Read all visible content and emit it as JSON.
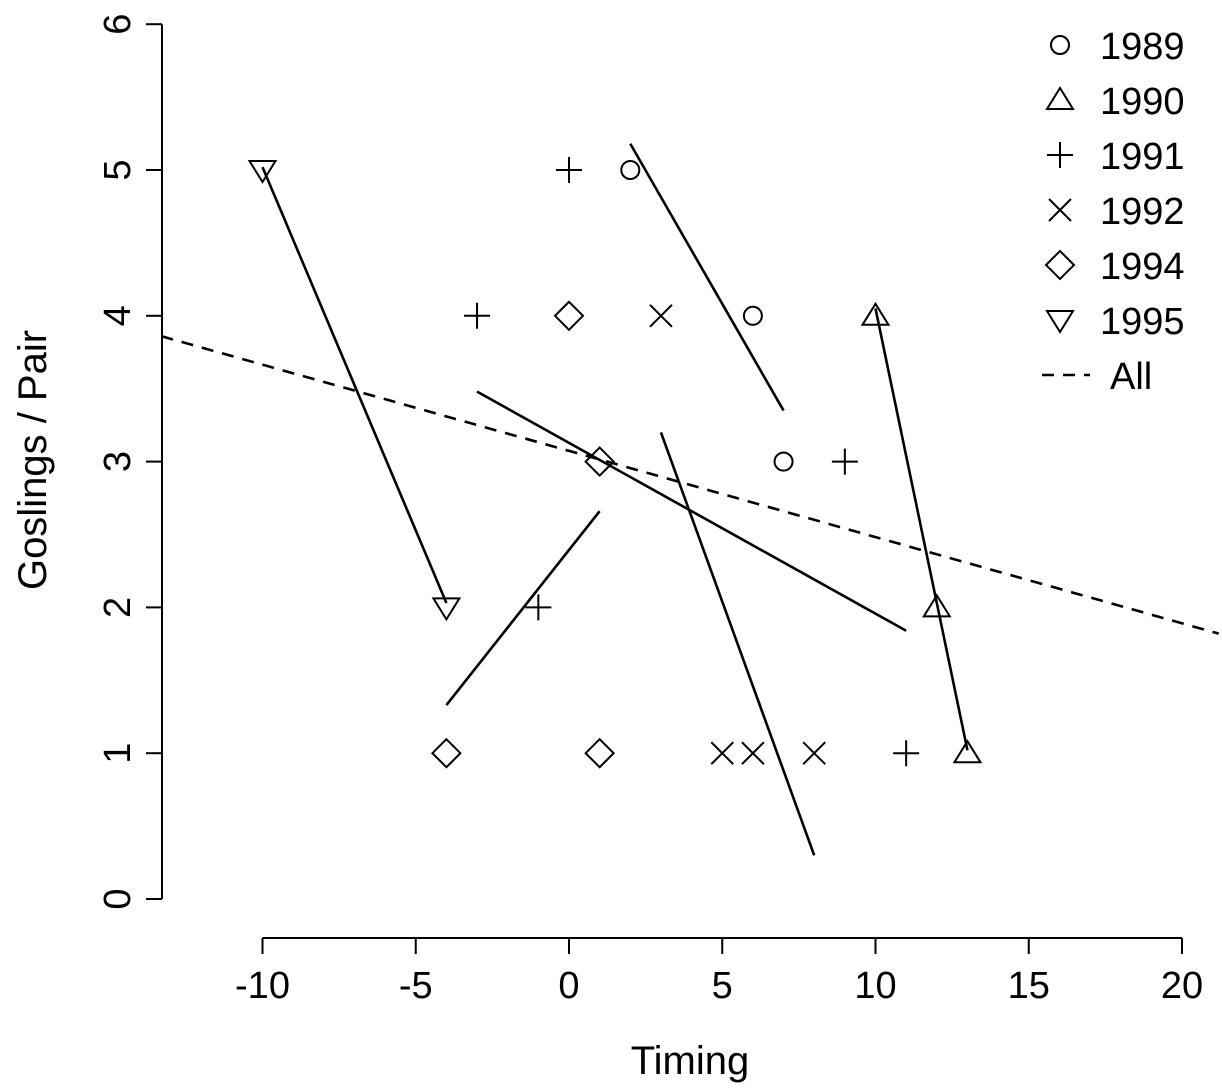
{
  "chart_data": {
    "type": "scatter",
    "title": "",
    "xlabel": "Timing",
    "ylabel": "Goslings / Pair",
    "xlim": [
      -13.3,
      21.2
    ],
    "ylim": [
      -0.2,
      6.05
    ],
    "x_ticks": [
      -10,
      -5,
      0,
      5,
      10,
      15,
      20
    ],
    "y_ticks": [
      0,
      1,
      2,
      3,
      4,
      5,
      6
    ],
    "legend_position": "top-right",
    "series": [
      {
        "name": "1989",
        "marker": "circle",
        "points": [
          [
            2,
            5
          ],
          [
            6,
            4
          ],
          [
            7,
            3
          ]
        ],
        "fit": [
          [
            2,
            5.18
          ],
          [
            7,
            3.35
          ]
        ]
      },
      {
        "name": "1990",
        "marker": "triangle-up",
        "points": [
          [
            10,
            4
          ],
          [
            12,
            2
          ],
          [
            13,
            1
          ]
        ],
        "fit": [
          [
            10,
            4.05
          ],
          [
            13,
            1.02
          ]
        ]
      },
      {
        "name": "1991",
        "marker": "plus",
        "points": [
          [
            0,
            5
          ],
          [
            -3,
            4
          ],
          [
            9,
            3
          ],
          [
            -1,
            2
          ],
          [
            11,
            1
          ]
        ],
        "fit": [
          [
            -3,
            3.48
          ],
          [
            11,
            1.84
          ]
        ]
      },
      {
        "name": "1992",
        "marker": "cross",
        "points": [
          [
            3,
            4
          ],
          [
            5,
            1
          ],
          [
            6,
            1
          ],
          [
            8,
            1
          ]
        ],
        "fit": [
          [
            3,
            3.2
          ],
          [
            8,
            0.3
          ]
        ]
      },
      {
        "name": "1994",
        "marker": "diamond",
        "points": [
          [
            0,
            4
          ],
          [
            1,
            3
          ],
          [
            -4,
            1
          ],
          [
            1,
            1
          ]
        ],
        "fit": [
          [
            -4,
            1.33
          ],
          [
            1,
            2.66
          ]
        ]
      },
      {
        "name": "1995",
        "marker": "triangle-down",
        "points": [
          [
            -10,
            5
          ],
          [
            -4,
            2
          ]
        ],
        "fit": [
          [
            -10,
            5.02
          ],
          [
            -4,
            2.03
          ]
        ]
      }
    ],
    "overall": {
      "name": "All",
      "style": "dashed",
      "line": [
        [
          -13.3,
          3.86
        ],
        [
          21.2,
          1.82
        ]
      ]
    }
  }
}
